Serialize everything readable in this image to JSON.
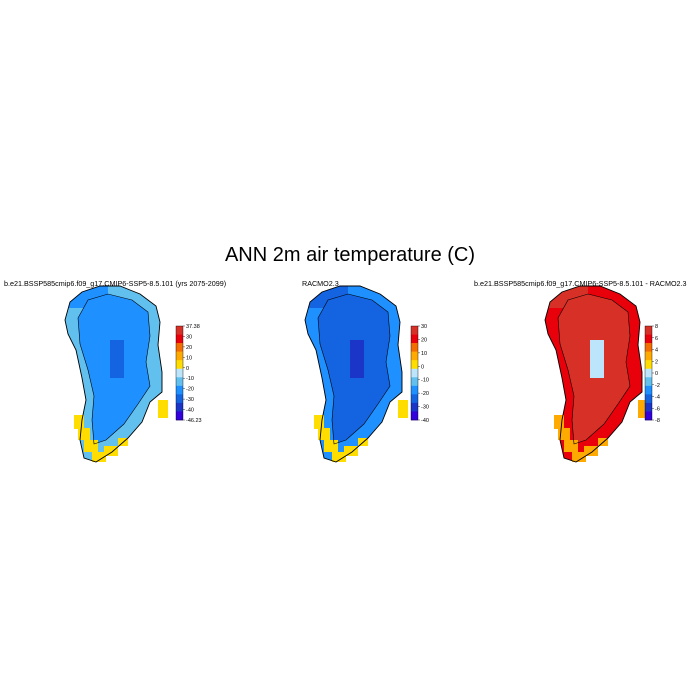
{
  "title": "ANN 2m air temperature (C)",
  "chart_data": [
    {
      "type": "heatmap",
      "title": "b.e21.BSSP585cmip6.f09_g17.CMIP6-SSP5-8.5.101 (yrs 2075-2099)",
      "colorbar": {
        "ticks": [
          "37.38",
          "30",
          "20",
          "10",
          "0",
          "-10",
          "-20",
          "-30",
          "-40",
          "-46.23"
        ],
        "colors": [
          "#d73027",
          "#e8000b",
          "#f46d00",
          "#ffaa00",
          "#ffdd00",
          "#bce4fa",
          "#62c0ef",
          "#1e90ff",
          "#1463e0",
          "#1a35c8",
          "#3300dd"
        ]
      },
      "dominant_values": {
        "interior": -20,
        "margin": -10,
        "south_coast": 5,
        "north_tip": -20
      }
    },
    {
      "type": "heatmap",
      "title": "RACMO2.3",
      "colorbar": {
        "ticks": [
          "30",
          "20",
          "10",
          "0",
          "-10",
          "-20",
          "-30",
          "-40"
        ],
        "colors": [
          "#d73027",
          "#e8000b",
          "#f46d00",
          "#ffaa00",
          "#ffdd00",
          "#bce4fa",
          "#62c0ef",
          "#1e90ff",
          "#1463e0",
          "#1a35c8",
          "#3300dd"
        ]
      },
      "dominant_values": {
        "interior": -25,
        "margin": -15,
        "south_coast": 3,
        "north_tip": -25
      }
    },
    {
      "type": "heatmap",
      "title": "b.e21.BSSP585cmip6.f09_g17.CMIP6-SSP5-8.5.101 - RACMO2.3",
      "colorbar": {
        "ticks": [
          "8",
          "6",
          "4",
          "2",
          "0",
          "-2",
          "-4",
          "-6",
          "-8"
        ],
        "colors": [
          "#d73027",
          "#e8000b",
          "#f46d00",
          "#ffaa00",
          "#ffdd00",
          "#bce4fa",
          "#62c0ef",
          "#1e90ff",
          "#1463e0",
          "#1a35c8",
          "#3300dd"
        ]
      },
      "dominant_values": {
        "interior": 8,
        "margin": 6,
        "south_coast": 3,
        "north_tip": 8
      }
    }
  ]
}
